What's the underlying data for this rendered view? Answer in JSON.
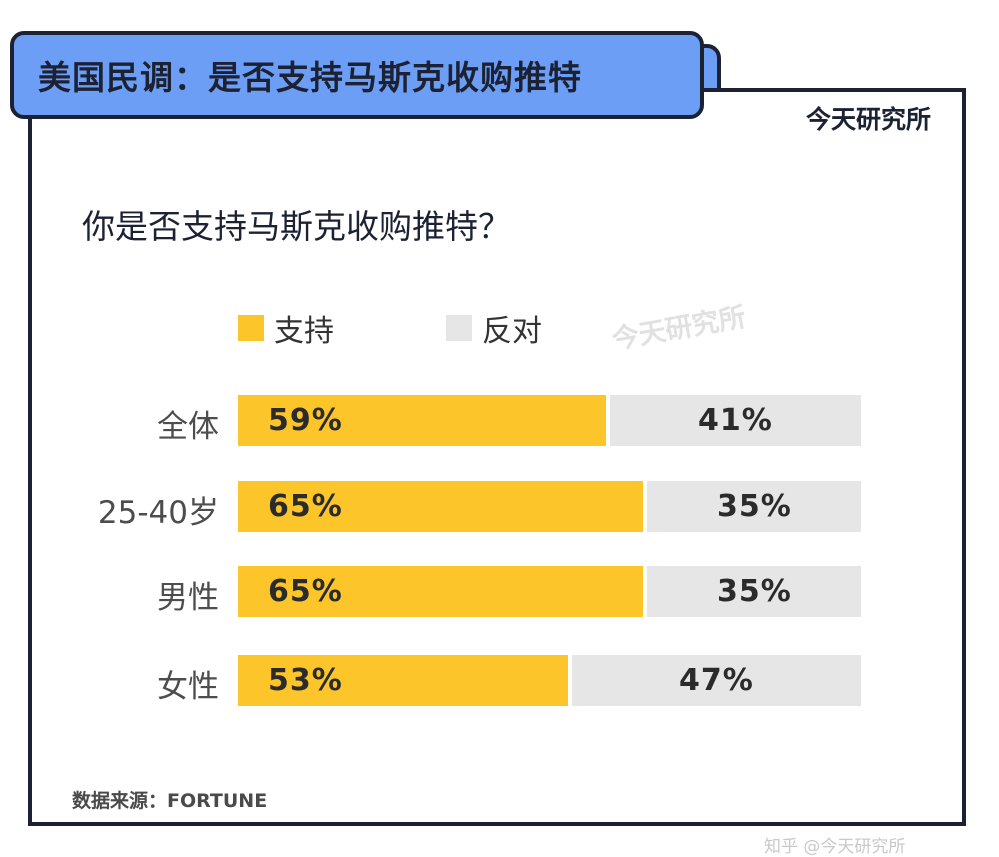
{
  "header": {
    "title": "美国民调：是否支持马斯克收购推特",
    "brand": "今天研究所"
  },
  "watermark": "今天研究所",
  "footer_mark": "知乎 @今天研究所",
  "colors": {
    "support": "#fcc52a",
    "oppose": "#e6e6e6",
    "title_bg": "#6d9ef5",
    "border": "#1c2233"
  },
  "chart_data": {
    "type": "bar",
    "stacked": true,
    "orientation": "horizontal",
    "title": "你是否支持马斯克收购推特？",
    "categories": [
      "全体",
      "25-40岁",
      "男性",
      "女性"
    ],
    "series": [
      {
        "name": "支持",
        "values": [
          59,
          65,
          65,
          53
        ],
        "labels": [
          "59%",
          "65%",
          "65%",
          "53%"
        ]
      },
      {
        "name": "反对",
        "values": [
          41,
          35,
          35,
          47
        ],
        "labels": [
          "41%",
          "35%",
          "35%",
          "47%"
        ]
      }
    ],
    "xlim": [
      0,
      100
    ],
    "legend_position": "top",
    "source": "数据来源：FORTUNE"
  }
}
